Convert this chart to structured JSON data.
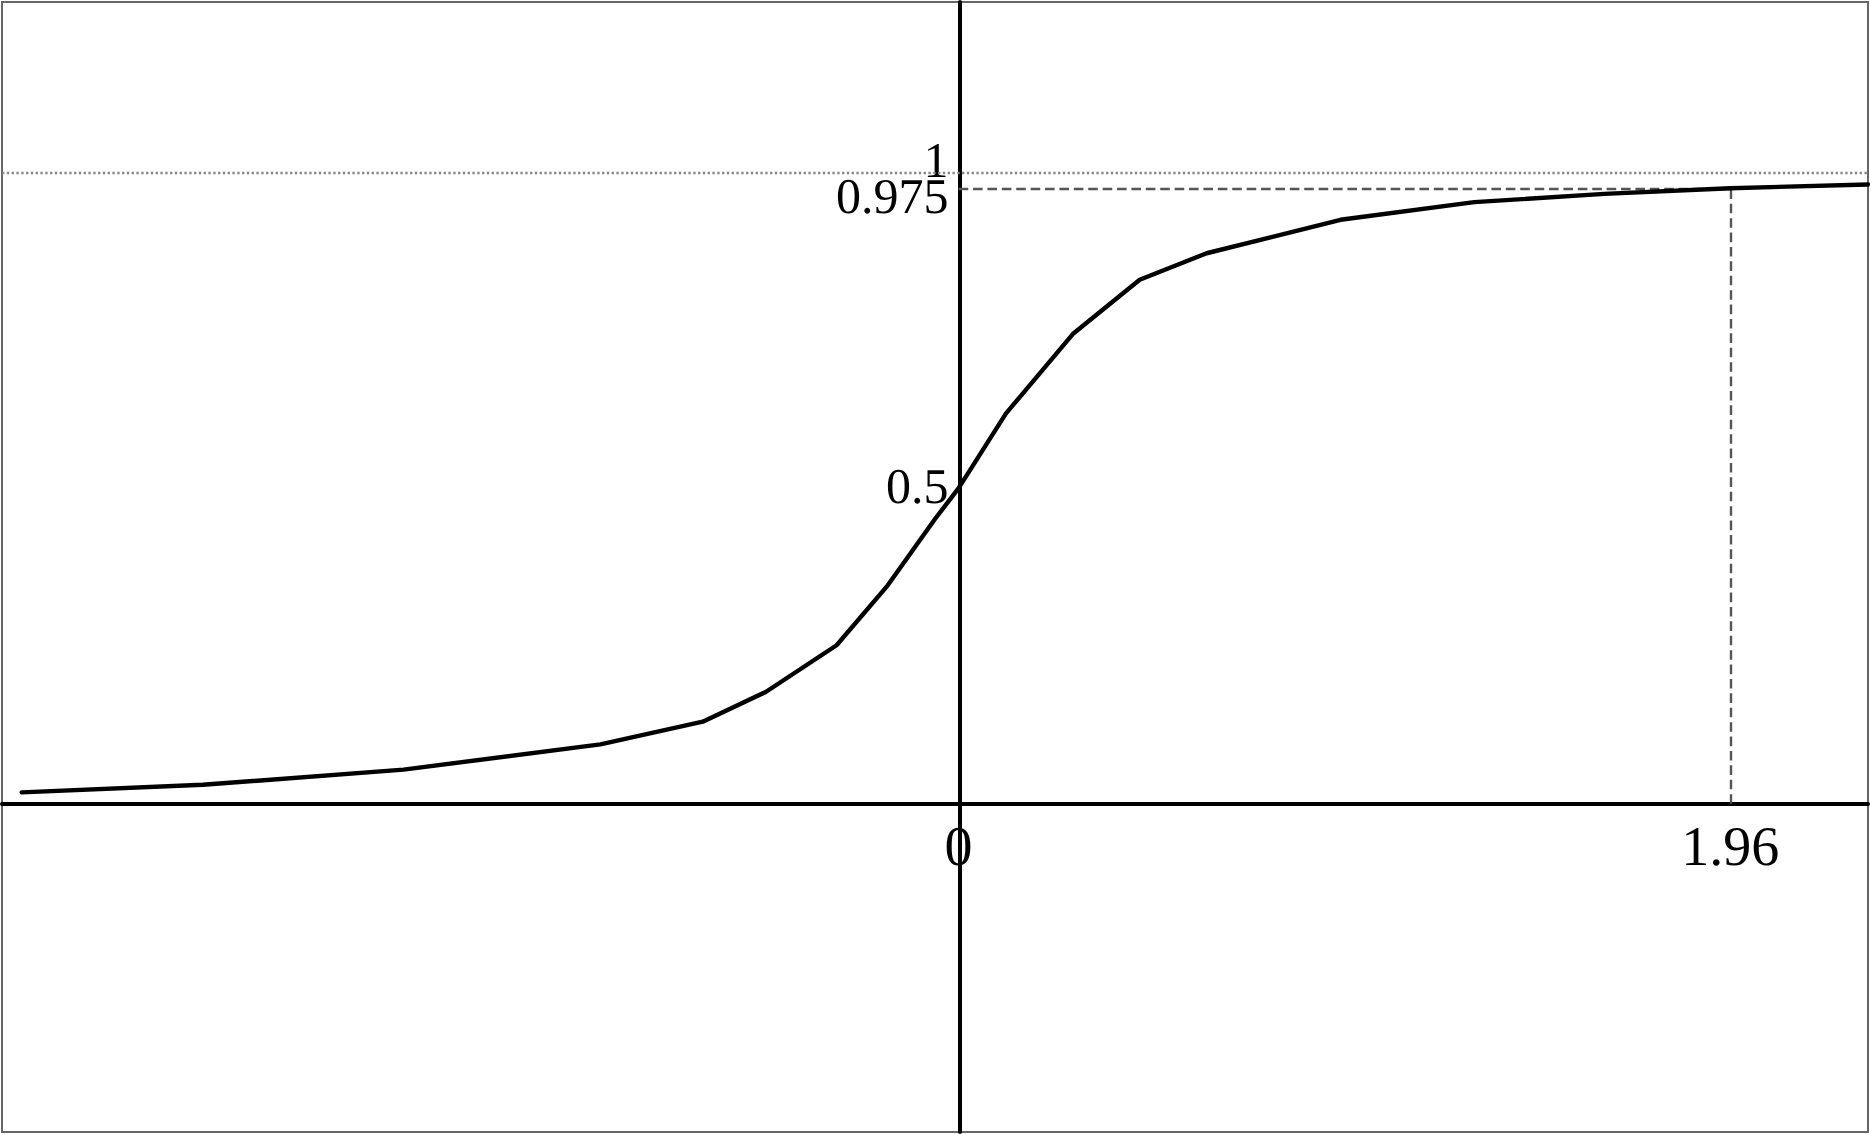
{
  "chart_data": {
    "type": "line",
    "x": [
      -2.38,
      -1.92,
      -1.41,
      -0.91,
      -0.65,
      -0.49,
      -0.31,
      -0.18,
      -0.06,
      0,
      0.12,
      0.29,
      0.46,
      0.63,
      0.97,
      1.31,
      1.64,
      1.96,
      2.31
    ],
    "series": [
      {
        "color": "#000000",
        "values": [
          0.018,
          0.03,
          0.054,
          0.094,
          0.13,
          0.177,
          0.251,
          0.346,
          0.451,
          0.5,
          0.618,
          0.744,
          0.83,
          0.872,
          0.925,
          0.953,
          0.966,
          0.975,
          0.981
        ]
      }
    ],
    "xlim": [
      -2.43,
      2.31
    ],
    "ylim": [
      -0.52,
      1.27
    ],
    "xticks": [
      0,
      1.96
    ],
    "yticks": [
      0.5,
      0.975,
      1
    ],
    "ref_lines": [
      {
        "axis": "y",
        "value": 1,
        "line_style": "dotted",
        "color": "#888888"
      },
      {
        "axis": "y",
        "value": 0.975,
        "line_style": "dashed",
        "color": "#555555"
      },
      {
        "axis": "x",
        "value": 1.96,
        "line_style": "dashed",
        "color": "#555555"
      }
    ],
    "grid": false,
    "marker": "none",
    "line_style": "solid"
  }
}
